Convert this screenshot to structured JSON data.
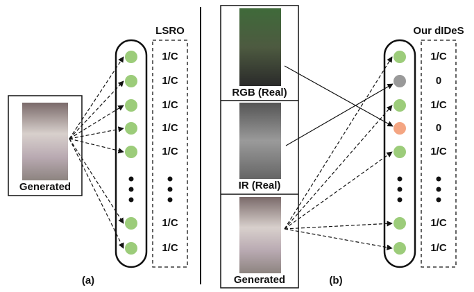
{
  "left": {
    "title": "LSRO",
    "image_label": "Generated",
    "labels": [
      "1/C",
      "1/C",
      "1/C",
      "1/C",
      "1/C",
      "1/C",
      "1/C"
    ],
    "caption": "(a)"
  },
  "right": {
    "title": "Our dIDeS",
    "images": [
      {
        "label": "RGB (Real)"
      },
      {
        "label": "IR (Real)"
      },
      {
        "label": "Generated"
      }
    ],
    "labels": [
      "1/C",
      "0",
      "1/C",
      "0",
      "1/C",
      "1/C",
      "1/C"
    ],
    "caption": "(b)"
  }
}
